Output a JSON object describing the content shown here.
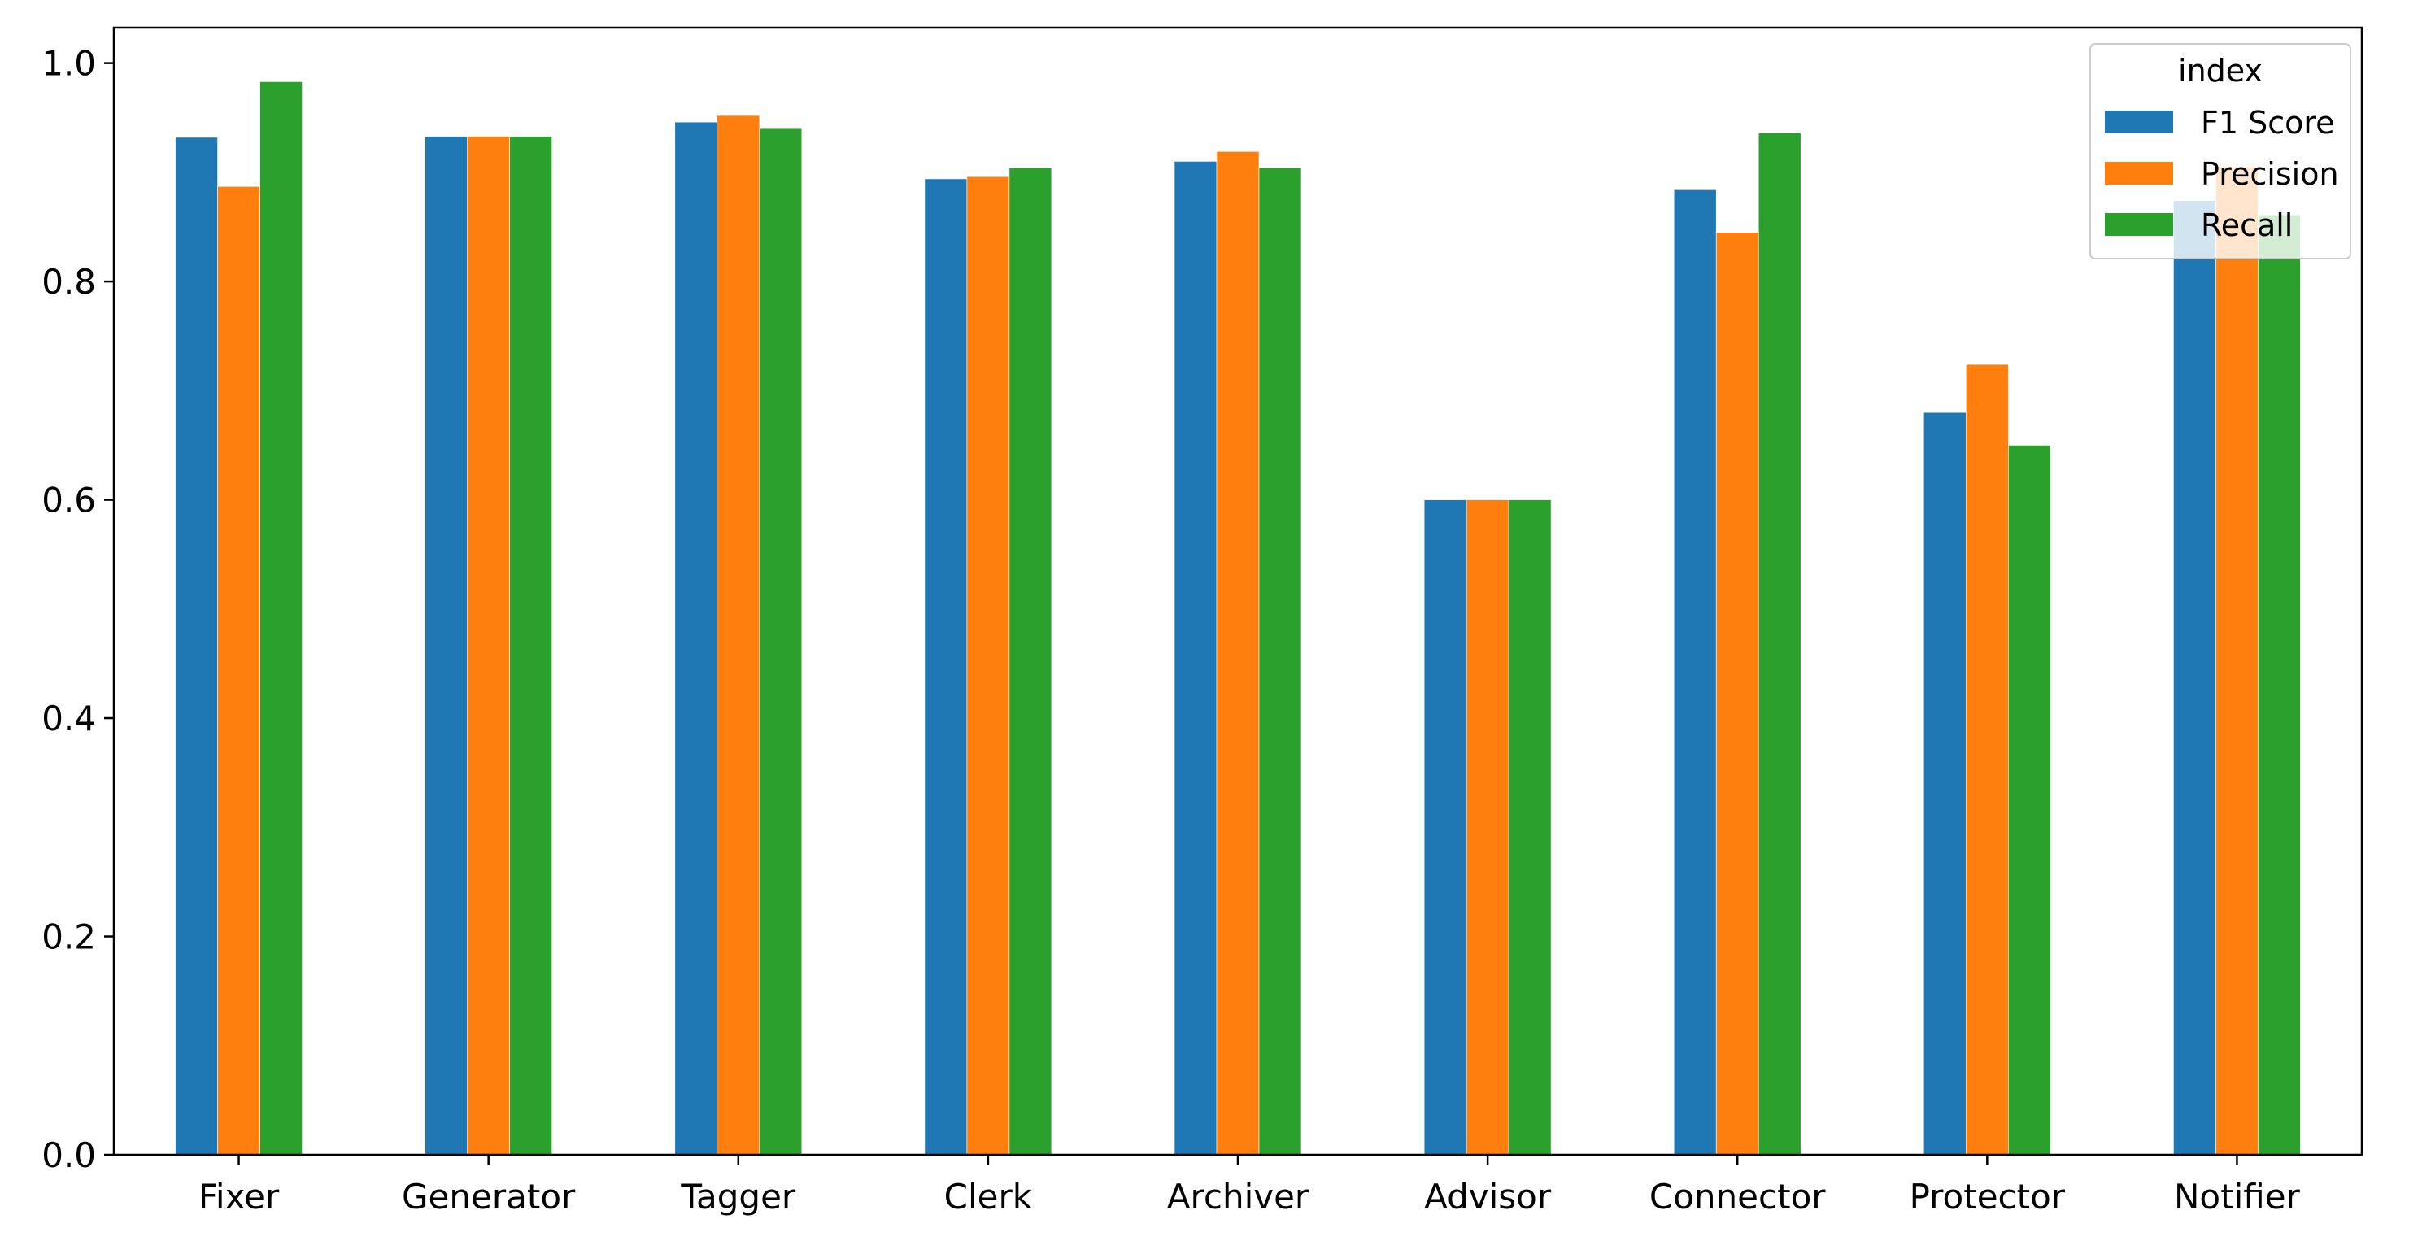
{
  "chart_data": {
    "type": "bar",
    "categories": [
      "Fixer",
      "Generator",
      "Tagger",
      "Clerk",
      "Archiver",
      "Advisor",
      "Connector",
      "Protector",
      "Notifier"
    ],
    "series": [
      {
        "name": "F1 Score",
        "color": "#1f77b4",
        "values": [
          0.932,
          0.933,
          0.946,
          0.894,
          0.91,
          0.6,
          0.884,
          0.68,
          0.874
        ]
      },
      {
        "name": "Precision",
        "color": "#ff7f0e",
        "values": [
          0.887,
          0.933,
          0.952,
          0.896,
          0.919,
          0.6,
          0.845,
          0.724,
          0.905
        ]
      },
      {
        "name": "Recall",
        "color": "#2ca02c",
        "values": [
          0.983,
          0.933,
          0.94,
          0.904,
          0.904,
          0.6,
          0.936,
          0.65,
          0.861
        ]
      }
    ],
    "ylim": [
      0,
      1.0325
    ],
    "yticks": [
      0.0,
      0.2,
      0.4,
      0.6,
      0.8,
      1.0
    ],
    "ytick_labels": [
      "0.0",
      "0.2",
      "0.4",
      "0.6",
      "0.8",
      "1.0"
    ],
    "legend": {
      "title": "index",
      "placement": "top-right"
    },
    "grid": false
  }
}
